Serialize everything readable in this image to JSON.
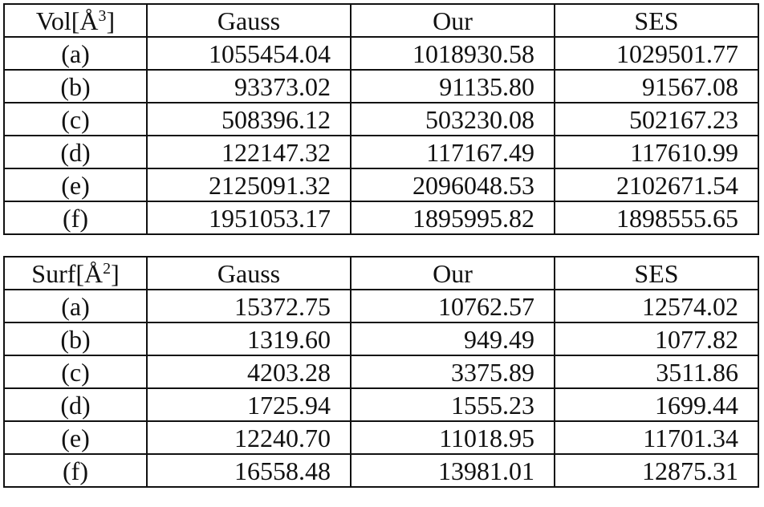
{
  "tables": [
    {
      "header": {
        "label_base": "Vol[",
        "label_unit": "Å",
        "label_exp": "3",
        "label_close": "]",
        "columns": [
          "Gauss",
          "Our",
          "SES"
        ]
      },
      "rows": [
        {
          "label": "(a)",
          "values": [
            "1055454.04",
            "1018930.58",
            "1029501.77"
          ]
        },
        {
          "label": "(b)",
          "values": [
            "93373.02",
            "91135.80",
            "91567.08"
          ]
        },
        {
          "label": "(c)",
          "values": [
            "508396.12",
            "503230.08",
            "502167.23"
          ]
        },
        {
          "label": "(d)",
          "values": [
            "122147.32",
            "117167.49",
            "117610.99"
          ]
        },
        {
          "label": "(e)",
          "values": [
            "2125091.32",
            "2096048.53",
            "2102671.54"
          ]
        },
        {
          "label": "(f)",
          "values": [
            "1951053.17",
            "1895995.82",
            "1898555.65"
          ]
        }
      ]
    },
    {
      "header": {
        "label_base": "Surf[",
        "label_unit": "Å",
        "label_exp": "2",
        "label_close": "]",
        "columns": [
          "Gauss",
          "Our",
          "SES"
        ]
      },
      "rows": [
        {
          "label": "(a)",
          "values": [
            "15372.75",
            "10762.57",
            "12574.02"
          ]
        },
        {
          "label": "(b)",
          "values": [
            "1319.60",
            "949.49",
            "1077.82"
          ]
        },
        {
          "label": "(c)",
          "values": [
            "4203.28",
            "3375.89",
            "3511.86"
          ]
        },
        {
          "label": "(d)",
          "values": [
            "1725.94",
            "1555.23",
            "1699.44"
          ]
        },
        {
          "label": "(e)",
          "values": [
            "12240.70",
            "11018.95",
            "11701.34"
          ]
        },
        {
          "label": "(f)",
          "values": [
            "16558.48",
            "13981.01",
            "12875.31"
          ]
        }
      ]
    }
  ]
}
